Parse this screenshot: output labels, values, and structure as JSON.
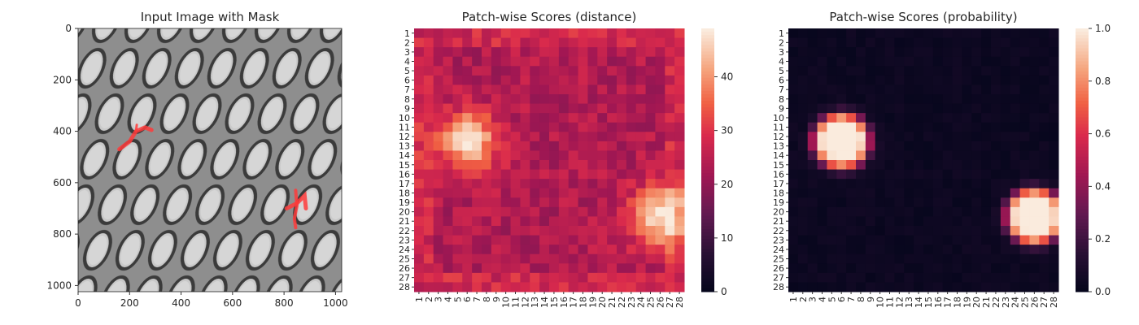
{
  "chart_data": [
    {
      "type": "image",
      "title": "Input Image with Mask",
      "x_ticks": [
        0,
        200,
        400,
        600,
        800,
        1000
      ],
      "y_ticks": [
        0,
        200,
        400,
        600,
        800,
        1000
      ],
      "xlim": [
        0,
        1024
      ],
      "ylim": [
        1024,
        0
      ],
      "image": "grayscale-mesh-texture",
      "mask_color": "#ff3b3b",
      "mask_regions": [
        {
          "x": [
            150,
            300
          ],
          "y": [
            370,
            490
          ]
        },
        {
          "x": [
            800,
            900
          ],
          "y": [
            620,
            780
          ]
        }
      ]
    },
    {
      "type": "heatmap",
      "title": "Patch-wise Scores (distance)",
      "x_categories": [
        "1",
        "2",
        "3",
        "4",
        "5",
        "6",
        "7",
        "8",
        "9",
        "10",
        "11",
        "12",
        "13",
        "14",
        "15",
        "16",
        "17",
        "18",
        "19",
        "20",
        "21",
        "22",
        "23",
        "24",
        "25",
        "26",
        "27",
        "28"
      ],
      "y_categories": [
        "1",
        "2",
        "3",
        "4",
        "5",
        "6",
        "7",
        "8",
        "9",
        "10",
        "11",
        "12",
        "13",
        "14",
        "15",
        "16",
        "17",
        "18",
        "19",
        "20",
        "21",
        "22",
        "23",
        "24",
        "25",
        "26",
        "27",
        "28"
      ],
      "colorbar": {
        "min": 0,
        "max": 49,
        "ticks": [
          0,
          10,
          20,
          30,
          40
        ]
      },
      "colormap": "rocket",
      "base_level": 24,
      "hotspots": [
        {
          "center_col": 6,
          "center_row": 12.5,
          "peak": 48
        },
        {
          "center_col": 26,
          "center_row": 20.5,
          "peak": 49
        }
      ]
    },
    {
      "type": "heatmap",
      "title": "Patch-wise Scores (probability)",
      "x_categories": [
        "1",
        "2",
        "3",
        "4",
        "5",
        "6",
        "7",
        "8",
        "9",
        "10",
        "11",
        "12",
        "13",
        "14",
        "15",
        "16",
        "17",
        "18",
        "19",
        "20",
        "21",
        "22",
        "23",
        "24",
        "25",
        "26",
        "27",
        "28"
      ],
      "y_categories": [
        "1",
        "2",
        "3",
        "4",
        "5",
        "6",
        "7",
        "8",
        "9",
        "10",
        "11",
        "12",
        "13",
        "14",
        "15",
        "16",
        "17",
        "18",
        "19",
        "20",
        "21",
        "22",
        "23",
        "24",
        "25",
        "26",
        "27",
        "28"
      ],
      "colorbar": {
        "min": 0.0,
        "max": 1.0,
        "ticks": [
          "0.0",
          "0.2",
          "0.4",
          "0.6",
          "0.8",
          "1.0"
        ]
      },
      "colormap": "rocket",
      "base_level": 0.02,
      "hotspots": [
        {
          "center_col": 6,
          "center_row": 12.5,
          "peak": 1.0
        },
        {
          "center_col": 26,
          "center_row": 20.5,
          "peak": 1.0
        }
      ]
    }
  ]
}
